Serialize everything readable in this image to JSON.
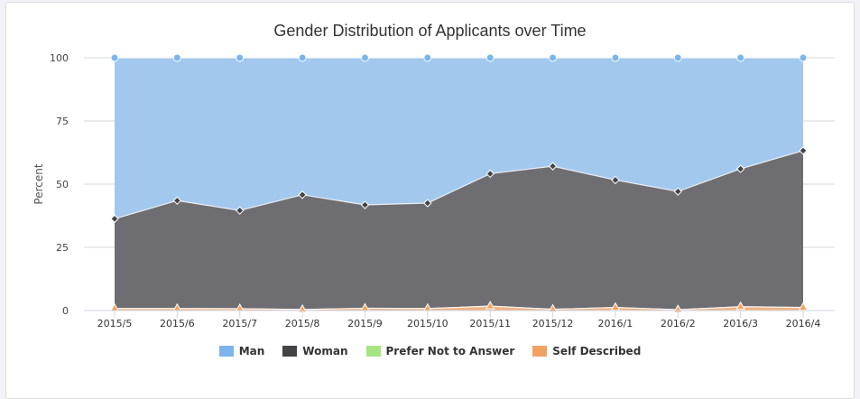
{
  "chart_data": {
    "type": "area",
    "stacked": "percent",
    "title": "Gender Distribution of Applicants over Time",
    "xlabel": "",
    "ylabel": "Percent",
    "ylim": [
      0,
      100
    ],
    "yticks": [
      0,
      25,
      50,
      75,
      100
    ],
    "grid": true,
    "legend_position": "bottom",
    "categories": [
      "2015/5",
      "2015/6",
      "2015/7",
      "2015/8",
      "2015/9",
      "2015/10",
      "2015/11",
      "2015/12",
      "2016/1",
      "2016/2",
      "2016/3",
      "2016/4"
    ],
    "series": [
      {
        "name": "Man",
        "color": "#7cb5ec",
        "fill": "#a3c8ee",
        "marker": "circle",
        "values": [
          63.2,
          56.0,
          60.0,
          54.0,
          57.7,
          57.1,
          45.1,
          42.7,
          47.6,
          52.7,
          43.3,
          36.3
        ]
      },
      {
        "name": "Woman",
        "color": "#434348",
        "fill": "#6e6d72",
        "marker": "diamond",
        "values": [
          35.2,
          42.3,
          38.6,
          45.2,
          40.5,
          41.4,
          51.5,
          56.3,
          49.6,
          46.6,
          53.7,
          61.3
        ]
      },
      {
        "name": "Prefer Not to Answer",
        "color": "#90ed7d",
        "fill": "#a8e98a",
        "marker": "square",
        "values": [
          0,
          0,
          0,
          0,
          0,
          0,
          0,
          0,
          0,
          0,
          0,
          0
        ]
      },
      {
        "name": "Self Described",
        "color": "#f7a35c",
        "fill": "#f3b27f",
        "marker": "triangle",
        "values": [
          0.8,
          0.8,
          0.7,
          0.4,
          0.9,
          0.8,
          1.7,
          0.5,
          1.2,
          0.3,
          1.5,
          1.2
        ]
      }
    ]
  },
  "legend": {
    "items": [
      {
        "label": "Man",
        "color": "#7cb5ec"
      },
      {
        "label": "Woman",
        "color": "#434348"
      },
      {
        "label": "Prefer Not to Answer",
        "color": "#a6e582"
      },
      {
        "label": "Self Described",
        "color": "#f0a263"
      }
    ]
  }
}
